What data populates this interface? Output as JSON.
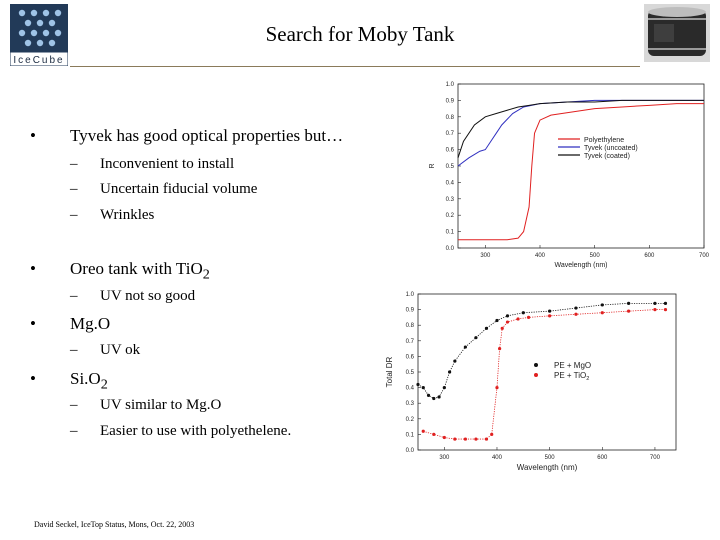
{
  "slide": {
    "title": "Search for Moby Tank",
    "logo_text": "IceCube",
    "footer": "David Seckel, IceTop Status, Mons, Oct. 22, 2003"
  },
  "bullets": [
    {
      "label": "Tyvek has good optical properties but…",
      "subs": [
        "Inconvenient to install",
        "Uncertain fiducial volume",
        "Wrinkles"
      ]
    },
    {
      "label_main": "Oreo tank with Ti",
      "label_tail": "O",
      "label_sub": "2",
      "subs": [
        "UV not so good"
      ]
    },
    {
      "label": "Mg.O",
      "subs": [
        "UV ok"
      ]
    },
    {
      "label_main": "Si.O",
      "label_sub": "2",
      "subs": [
        "UV similar to Mg.O",
        "Easier to use with polyethelene."
      ]
    }
  ],
  "bullet_symbol": "•",
  "dash_symbol": "–",
  "chart_data": [
    {
      "type": "line",
      "title": "",
      "xlabel": "Wavelength (nm)",
      "ylabel": "R",
      "xlim": [
        250,
        700
      ],
      "ylim": [
        0.0,
        1.0
      ],
      "x_ticks": [
        "300",
        "400",
        "500",
        "600",
        "700"
      ],
      "y_ticks": [
        "0.0",
        "0.1",
        "0.2",
        "0.3",
        "0.4",
        "0.5",
        "0.6",
        "0.7",
        "0.8",
        "0.9",
        "1.0"
      ],
      "legend_position": "right",
      "series": [
        {
          "name": "Polyethylene",
          "color": "#e02020",
          "x": [
            250,
            300,
            340,
            360,
            370,
            380,
            385,
            390,
            400,
            420,
            460,
            500,
            550,
            600,
            650,
            700
          ],
          "y": [
            0.05,
            0.05,
            0.05,
            0.06,
            0.1,
            0.25,
            0.5,
            0.7,
            0.78,
            0.81,
            0.83,
            0.85,
            0.86,
            0.87,
            0.88,
            0.88
          ]
        },
        {
          "name": "Tyvek (uncoated)",
          "color": "#3030c0",
          "x": [
            250,
            270,
            290,
            300,
            310,
            320,
            330,
            350,
            370,
            400,
            450,
            500,
            550,
            600,
            650,
            700
          ],
          "y": [
            0.5,
            0.55,
            0.59,
            0.6,
            0.65,
            0.7,
            0.75,
            0.82,
            0.86,
            0.88,
            0.89,
            0.9,
            0.9,
            0.9,
            0.9,
            0.9
          ]
        },
        {
          "name": "Tyvek (coated)",
          "color": "#111111",
          "x": [
            250,
            260,
            280,
            300,
            320,
            340,
            360,
            380,
            400,
            450,
            500,
            550,
            600,
            650,
            700
          ],
          "y": [
            0.55,
            0.65,
            0.75,
            0.8,
            0.82,
            0.84,
            0.86,
            0.87,
            0.88,
            0.89,
            0.89,
            0.9,
            0.9,
            0.9,
            0.9
          ]
        }
      ]
    },
    {
      "type": "scatter",
      "title": "",
      "xlabel": "Wavelength (nm)",
      "ylabel": "Total DR",
      "xlim": [
        250,
        740
      ],
      "ylim": [
        0.0,
        1.0
      ],
      "x_ticks": [
        "300",
        "400",
        "500",
        "600",
        "700"
      ],
      "y_ticks": [
        "0.0",
        "0.1",
        "0.2",
        "0.3",
        "0.4",
        "0.5",
        "0.6",
        "0.7",
        "0.8",
        "0.9",
        "1.0"
      ],
      "legend_position": "right",
      "series": [
        {
          "name_main": "PE + Mg",
          "name_tail": "O",
          "color": "#111111",
          "x": [
            250,
            260,
            270,
            280,
            290,
            300,
            310,
            320,
            340,
            360,
            380,
            400,
            420,
            450,
            500,
            550,
            600,
            650,
            700,
            720
          ],
          "y": [
            0.42,
            0.4,
            0.35,
            0.33,
            0.34,
            0.4,
            0.5,
            0.57,
            0.66,
            0.72,
            0.78,
            0.83,
            0.86,
            0.88,
            0.89,
            0.91,
            0.93,
            0.94,
            0.94,
            0.94
          ]
        },
        {
          "name_main": "PE + TiO",
          "name_sub": "2",
          "color": "#e02020",
          "x": [
            260,
            280,
            300,
            320,
            340,
            360,
            380,
            390,
            400,
            405,
            410,
            420,
            440,
            460,
            500,
            550,
            600,
            650,
            700,
            720
          ],
          "y": [
            0.12,
            0.1,
            0.08,
            0.07,
            0.07,
            0.07,
            0.07,
            0.1,
            0.4,
            0.65,
            0.78,
            0.82,
            0.84,
            0.85,
            0.86,
            0.87,
            0.88,
            0.89,
            0.9,
            0.9
          ]
        }
      ]
    }
  ]
}
